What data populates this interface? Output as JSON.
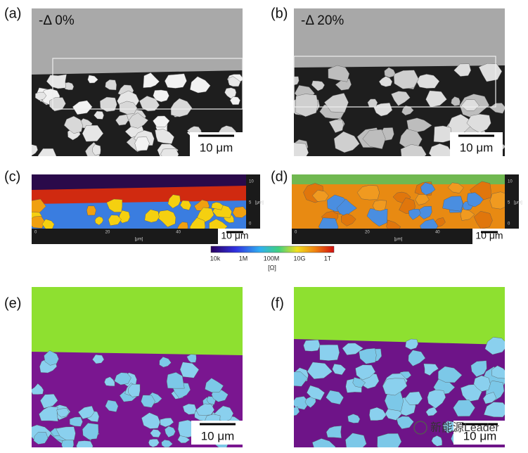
{
  "panels": [
    {
      "label": "(a)",
      "annotation": "-Δ 0%",
      "scale_bar": "10 μm"
    },
    {
      "label": "(b)",
      "annotation": "-Δ 20%",
      "scale_bar": "10 μm"
    },
    {
      "label": "(c)",
      "scale_bar": "10 μm",
      "x_ticks": [
        "0",
        "20",
        "40"
      ],
      "x_label": "[μm]",
      "y_ticks": [
        "10",
        "5",
        "0"
      ],
      "y_label": "[μm]"
    },
    {
      "label": "(d)",
      "scale_bar": "10 μm",
      "x_ticks": [
        "0",
        "20",
        "40"
      ],
      "x_label": "[μm]",
      "y_ticks": [
        "10",
        "5",
        "0"
      ],
      "y_label": "[μm]"
    },
    {
      "label": "(e)",
      "scale_bar": "10 μm"
    },
    {
      "label": "(f)",
      "scale_bar": "10 μm"
    }
  ],
  "colorbar": {
    "ticks": [
      "10k",
      "1M",
      "100M",
      "10G",
      "1T"
    ],
    "unit": "[Ω]"
  },
  "watermark": "新能源Leader"
}
